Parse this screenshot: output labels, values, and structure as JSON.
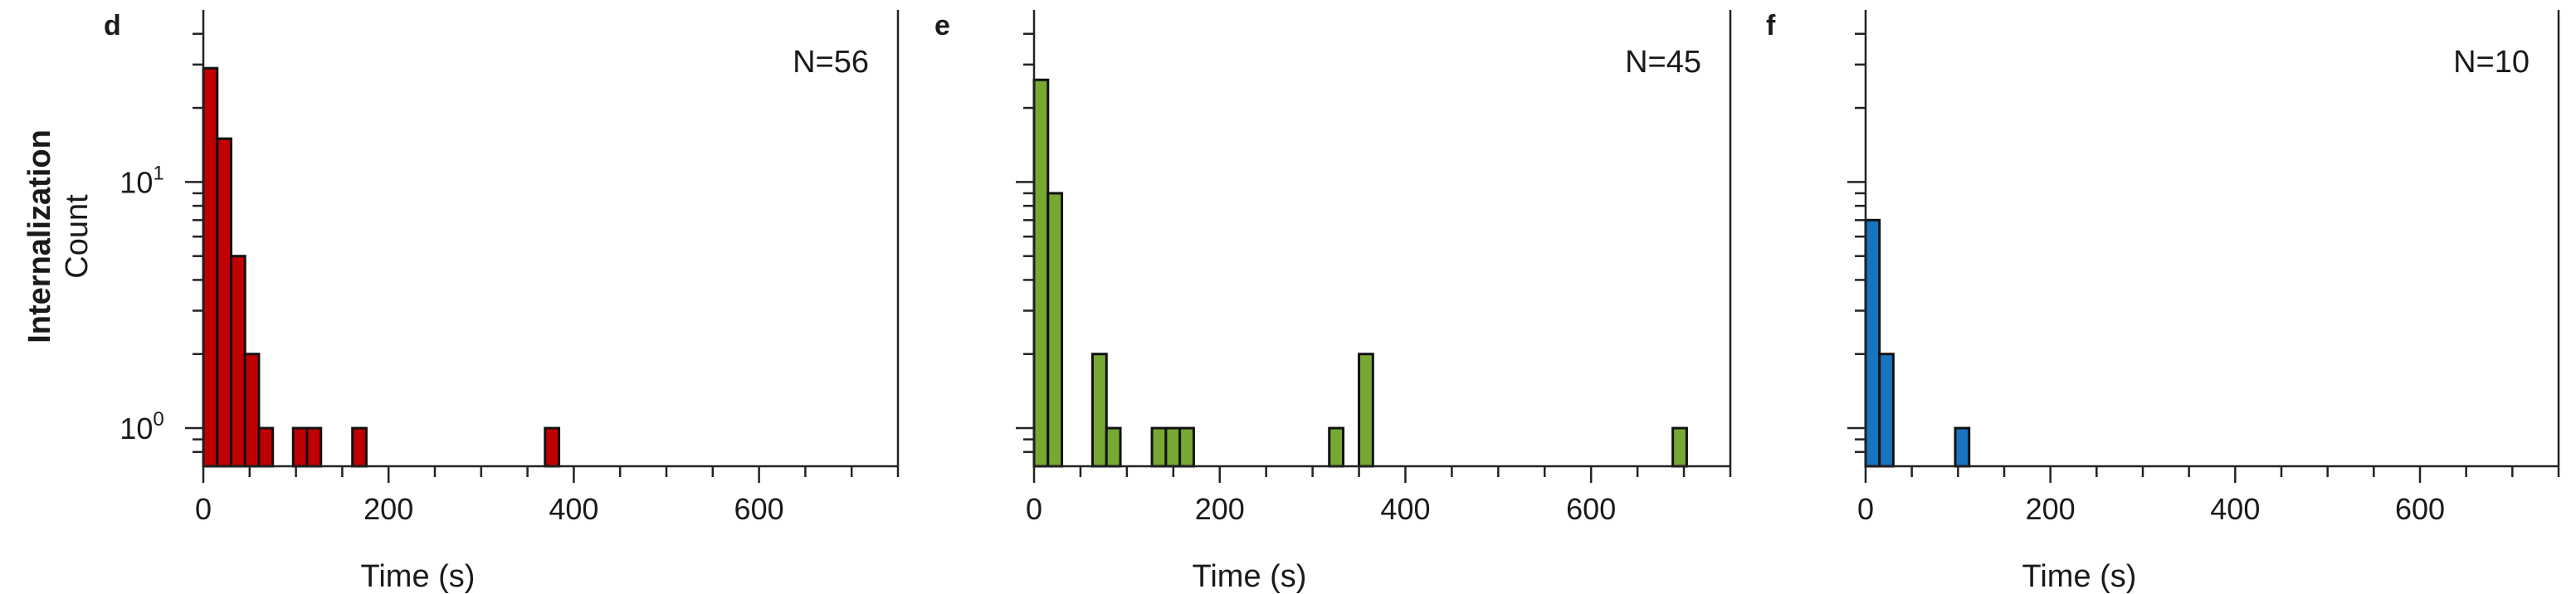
{
  "figure": {
    "row_label": "Internalization"
  },
  "chart_data": [
    {
      "type": "bar",
      "panel_label": "d",
      "annotation": "N=56",
      "color": "#C00000",
      "xlabel": "Time (s)",
      "ylabel": "Count",
      "yscale": "log",
      "xlim": [
        0,
        750
      ],
      "ylim": [
        0.7,
        50
      ],
      "xticks": [
        "0",
        "200",
        "400",
        "600"
      ],
      "yticks": [
        {
          "base": "10",
          "exp": "0"
        },
        {
          "base": "10",
          "exp": "1"
        }
      ],
      "bin_width": 15,
      "bins": [
        {
          "x": 0,
          "count": 29
        },
        {
          "x": 15,
          "count": 15
        },
        {
          "x": 30,
          "count": 5
        },
        {
          "x": 45,
          "count": 2
        },
        {
          "x": 60,
          "count": 1
        },
        {
          "x": 97,
          "count": 1
        },
        {
          "x": 112,
          "count": 1
        },
        {
          "x": 161,
          "count": 1
        },
        {
          "x": 369,
          "count": 1
        }
      ]
    },
    {
      "type": "bar",
      "panel_label": "e",
      "annotation": "N=45",
      "color": "#77A832",
      "xlabel": "Time (s)",
      "ylabel": "",
      "yscale": "log",
      "xlim": [
        0,
        750
      ],
      "ylim": [
        0.7,
        50
      ],
      "xticks": [
        "0",
        "200",
        "400",
        "600"
      ],
      "yticks": [],
      "bin_width": 15,
      "bins": [
        {
          "x": 0,
          "count": 26
        },
        {
          "x": 15,
          "count": 9
        },
        {
          "x": 63,
          "count": 2
        },
        {
          "x": 78,
          "count": 1
        },
        {
          "x": 127,
          "count": 1
        },
        {
          "x": 142,
          "count": 1
        },
        {
          "x": 157,
          "count": 1
        },
        {
          "x": 318,
          "count": 1
        },
        {
          "x": 350,
          "count": 2
        },
        {
          "x": 688,
          "count": 1
        }
      ]
    },
    {
      "type": "bar",
      "panel_label": "f",
      "annotation": "N=10",
      "color": "#1874C0",
      "xlabel": "Time (s)",
      "ylabel": "",
      "yscale": "log",
      "xlim": [
        0,
        750
      ],
      "ylim": [
        0.7,
        50
      ],
      "xticks": [
        "0",
        "200",
        "400",
        "600"
      ],
      "yticks": [],
      "bin_width": 15,
      "bins": [
        {
          "x": 0,
          "count": 7
        },
        {
          "x": 15,
          "count": 2
        },
        {
          "x": 97,
          "count": 1
        }
      ]
    }
  ]
}
